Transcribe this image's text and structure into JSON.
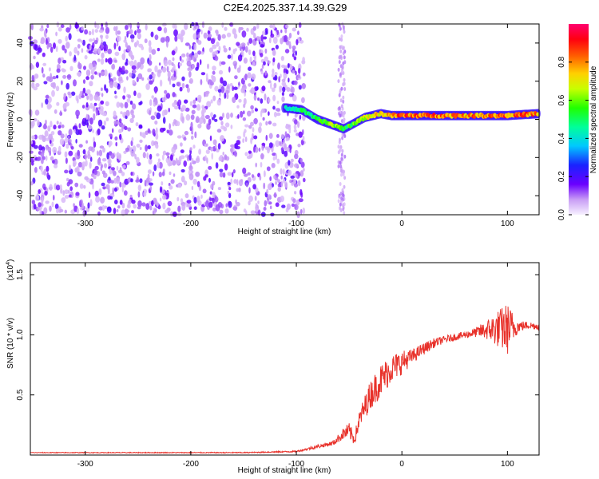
{
  "title": "C2E4.2025.337.14.39.G29",
  "chart_data": [
    {
      "type": "heatmap",
      "name": "spectrogram",
      "title": "C2E4.2025.337.14.39.G29",
      "xlabel": "Height of straight line (km)",
      "ylabel": "Frequency (Hz)",
      "xlim": [
        -352,
        130
      ],
      "ylim": [
        -50,
        50
      ],
      "xticks": [
        -300,
        -200,
        -100,
        0,
        100
      ],
      "yticks": [
        -40,
        -20,
        0,
        20,
        40
      ],
      "colorbar": {
        "label": "Normalized spectral amplitude",
        "range": [
          0,
          1
        ],
        "ticks": [
          0.0,
          0.2,
          0.4,
          0.6,
          0.8
        ]
      },
      "ridge": {
        "x": [
          -110,
          -95,
          -80,
          -65,
          -55,
          -45,
          -35,
          -20,
          -10,
          0,
          20,
          60,
          100,
          130
        ],
        "freq": [
          6,
          5,
          0,
          -3,
          -5,
          -2,
          1,
          3,
          2,
          2,
          2,
          2,
          2,
          3
        ],
        "amplitude": [
          0.45,
          0.55,
          0.6,
          0.7,
          0.6,
          0.65,
          0.75,
          0.85,
          0.9,
          0.95,
          0.95,
          0.9,
          0.95,
          0.9
        ]
      },
      "noise_region_x": [
        -352,
        -100
      ],
      "noise_amplitude": [
        0.05,
        0.2
      ]
    },
    {
      "type": "line",
      "name": "snr",
      "xlabel": "Height of straight line (km)",
      "ylabel": "SNR (10 * v/v)",
      "multiplier": "(x10^4)",
      "multiplier_base": "(x10",
      "multiplier_exp": "4",
      "multiplier_close": ")",
      "xlim": [
        -352,
        130
      ],
      "ylim": [
        0,
        1.6
      ],
      "xticks": [
        -300,
        -200,
        -100,
        0,
        100
      ],
      "yticks": [
        0.5,
        1.0,
        1.5
      ],
      "series": [
        {
          "name": "SNR",
          "color": "#e8312a",
          "x": [
            -352,
            -150,
            -100,
            -80,
            -65,
            -55,
            -50,
            -45,
            -40,
            -30,
            -20,
            -10,
            0,
            10,
            20,
            30,
            40,
            50,
            60,
            70,
            80,
            90,
            100,
            110,
            120,
            130
          ],
          "y": [
            0.02,
            0.02,
            0.03,
            0.07,
            0.1,
            0.18,
            0.2,
            0.13,
            0.3,
            0.5,
            0.62,
            0.72,
            0.77,
            0.82,
            0.88,
            0.93,
            0.96,
            0.98,
            1.0,
            1.02,
            1.04,
            1.05,
            1.05,
            1.07,
            1.08,
            1.07
          ],
          "noise": [
            0.003,
            0.004,
            0.006,
            0.015,
            0.02,
            0.05,
            0.07,
            0.05,
            0.08,
            0.12,
            0.14,
            0.12,
            0.1,
            0.06,
            0.05,
            0.04,
            0.03,
            0.03,
            0.03,
            0.04,
            0.08,
            0.15,
            0.22,
            0.05,
            0.03,
            0.03
          ]
        }
      ]
    }
  ]
}
